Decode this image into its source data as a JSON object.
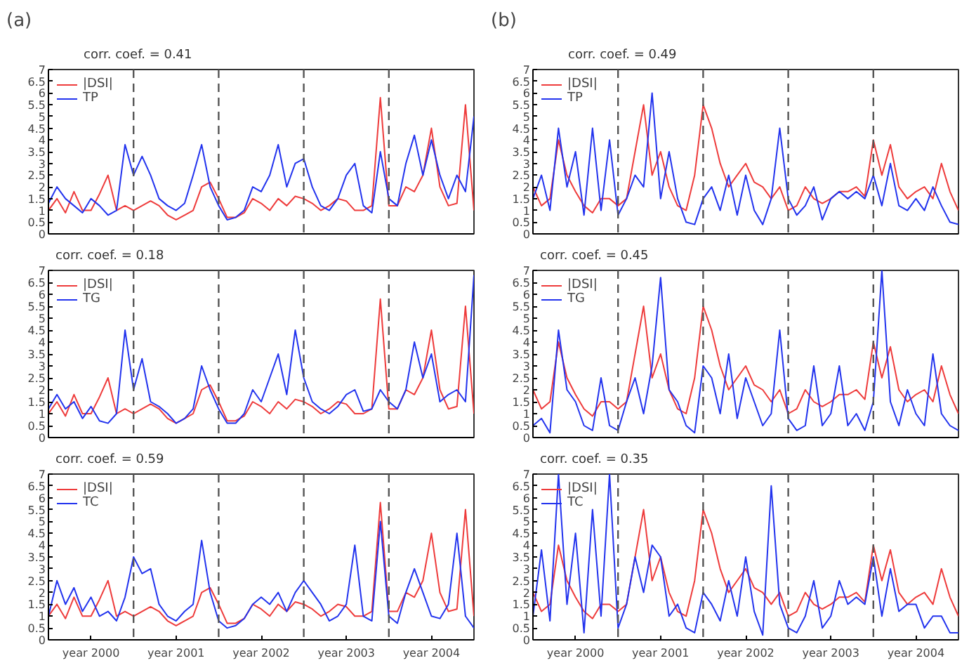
{
  "chart_data": [
    {
      "type": "line",
      "title": "(a)",
      "subtitle": "corr. coef. = 0.41",
      "categories": [
        null,
        null,
        null,
        null,
        null,
        null,
        null,
        null,
        null,
        null,
        null,
        null,
        null,
        null,
        null,
        null,
        null,
        null,
        null,
        null,
        null,
        null,
        null,
        null,
        null,
        null,
        null,
        null,
        null,
        null,
        null,
        null,
        null,
        null,
        null,
        null,
        null,
        null,
        null,
        null,
        null,
        null,
        null,
        null,
        null,
        null,
        null,
        null,
        null,
        null,
        null
      ],
      "series": [
        {
          "name": "|DSI|",
          "color": "#ee3b3b",
          "values": [
            1.0,
            1.5,
            0.9,
            1.8,
            1.0,
            1.0,
            1.7,
            2.5,
            1.0,
            1.2,
            1.0,
            1.2,
            1.4,
            1.2,
            0.8,
            0.6,
            0.8,
            1.0,
            2.0,
            2.2,
            1.5,
            0.7,
            0.7,
            0.9,
            1.5,
            1.3,
            1.0,
            1.5,
            1.2,
            1.6,
            1.5,
            1.3,
            1.0,
            1.2,
            1.5,
            1.4,
            1.0,
            1.0,
            1.2,
            5.8,
            1.2,
            1.2,
            2.0,
            1.8,
            2.5,
            4.5,
            2.0,
            1.2,
            1.3,
            5.5,
            1.0
          ]
        },
        {
          "name": "TP",
          "color": "#2233ee",
          "values": [
            1.3,
            2.0,
            1.5,
            1.2,
            0.9,
            1.5,
            1.2,
            0.8,
            1.0,
            3.8,
            2.5,
            3.3,
            2.5,
            1.5,
            1.2,
            1.0,
            1.3,
            2.5,
            3.8,
            2.0,
            1.2,
            0.6,
            0.7,
            1.0,
            2.0,
            1.8,
            2.5,
            3.8,
            2.0,
            3.0,
            3.2,
            2.0,
            1.2,
            1.0,
            1.5,
            2.5,
            3.0,
            1.2,
            0.9,
            3.5,
            1.5,
            1.2,
            3.0,
            4.2,
            2.5,
            4.0,
            2.5,
            1.5,
            2.5,
            1.8,
            5.0
          ]
        }
      ],
      "ylim": [
        0,
        7
      ],
      "yticks": [
        0,
        0.5,
        1,
        1.5,
        2,
        2.5,
        3,
        3.5,
        4,
        4.5,
        5,
        5.5,
        6,
        6.5,
        7
      ],
      "legend": "top left",
      "grid": "x"
    },
    {
      "type": "line",
      "title": "(b)",
      "subtitle": "corr. coef. = 0.49",
      "categories": [
        null,
        null,
        null,
        null,
        null,
        null,
        null,
        null,
        null,
        null,
        null,
        null,
        null,
        null,
        null,
        null,
        null,
        null,
        null,
        null,
        null,
        null,
        null,
        null,
        null,
        null,
        null,
        null,
        null,
        null,
        null,
        null,
        null,
        null,
        null,
        null,
        null,
        null,
        null,
        null,
        null,
        null,
        null,
        null,
        null,
        null,
        null,
        null,
        null,
        null,
        null
      ],
      "series": [
        {
          "name": "|DSI|",
          "color": "#ee3b3b",
          "values": [
            2.0,
            1.2,
            1.5,
            4.0,
            2.5,
            1.8,
            1.2,
            0.9,
            1.5,
            1.5,
            1.2,
            1.5,
            3.5,
            5.5,
            2.5,
            3.5,
            2.0,
            1.2,
            1.0,
            2.5,
            5.5,
            4.5,
            3.0,
            2.0,
            2.5,
            3.0,
            2.2,
            2.0,
            1.5,
            2.0,
            1.0,
            1.2,
            2.0,
            1.5,
            1.3,
            1.5,
            1.8,
            1.8,
            2.0,
            1.6,
            4.0,
            2.5,
            3.8,
            2.0,
            1.5,
            1.8,
            2.0,
            1.5,
            3.0,
            1.8,
            1.0
          ]
        },
        {
          "name": "TP",
          "color": "#2233ee",
          "values": [
            1.5,
            2.5,
            1.0,
            4.5,
            2.0,
            3.5,
            0.8,
            4.5,
            1.0,
            4.0,
            0.8,
            1.5,
            2.5,
            2.0,
            6.0,
            1.5,
            3.5,
            1.5,
            0.5,
            0.4,
            1.5,
            2.0,
            1.0,
            2.5,
            0.8,
            2.5,
            1.0,
            0.4,
            1.5,
            4.5,
            1.5,
            0.8,
            1.2,
            2.0,
            0.6,
            1.5,
            1.8,
            1.5,
            1.8,
            1.5,
            2.5,
            1.2,
            3.0,
            1.2,
            1.0,
            1.5,
            1.0,
            2.0,
            1.2,
            0.5,
            0.4
          ]
        }
      ],
      "ylim": [
        0,
        7
      ],
      "yticks": [
        0,
        0.5,
        1,
        1.5,
        2,
        2.5,
        3,
        3.5,
        4,
        4.5,
        5,
        5.5,
        6,
        6.5,
        7
      ],
      "legend": "top left",
      "grid": "x"
    },
    {
      "type": "line",
      "title": "corr. coef. = 0.18",
      "categories": [
        null,
        null,
        null,
        null,
        null,
        null,
        null,
        null,
        null,
        null,
        null,
        null,
        null,
        null,
        null,
        null,
        null,
        null,
        null,
        null,
        null,
        null,
        null,
        null,
        null,
        null,
        null,
        null,
        null,
        null,
        null,
        null,
        null,
        null,
        null,
        null,
        null,
        null,
        null,
        null,
        null,
        null,
        null,
        null,
        null,
        null,
        null,
        null,
        null,
        null,
        null
      ],
      "series": [
        {
          "name": "|DSI|",
          "color": "#ee3b3b",
          "values": [
            1.0,
            1.5,
            0.9,
            1.8,
            1.0,
            1.0,
            1.7,
            2.5,
            1.0,
            1.2,
            1.0,
            1.2,
            1.4,
            1.2,
            0.8,
            0.6,
            0.8,
            1.0,
            2.0,
            2.2,
            1.5,
            0.7,
            0.7,
            0.9,
            1.5,
            1.3,
            1.0,
            1.5,
            1.2,
            1.6,
            1.5,
            1.3,
            1.0,
            1.2,
            1.5,
            1.4,
            1.0,
            1.0,
            1.2,
            5.8,
            1.2,
            1.2,
            2.0,
            1.8,
            2.5,
            4.5,
            2.0,
            1.2,
            1.3,
            5.5,
            1.0
          ]
        },
        {
          "name": "TG",
          "color": "#2233ee",
          "values": [
            1.2,
            1.8,
            1.2,
            1.5,
            0.8,
            1.3,
            0.7,
            0.6,
            1.0,
            4.5,
            2.0,
            3.3,
            1.5,
            1.3,
            1.0,
            0.6,
            0.8,
            1.2,
            3.0,
            2.0,
            1.2,
            0.6,
            0.6,
            1.0,
            2.0,
            1.5,
            2.5,
            3.5,
            1.8,
            4.5,
            2.5,
            1.5,
            1.2,
            1.0,
            1.3,
            1.8,
            2.0,
            1.1,
            1.2,
            2.0,
            1.5,
            1.2,
            2.0,
            4.0,
            2.5,
            3.5,
            1.5,
            1.8,
            2.0,
            1.5,
            6.8
          ]
        }
      ],
      "ylim": [
        0,
        7
      ],
      "yticks": [
        0,
        0.5,
        1,
        1.5,
        2,
        2.5,
        3,
        3.5,
        4,
        4.5,
        5,
        5.5,
        6,
        6.5,
        7
      ],
      "legend": "top left",
      "grid": "x"
    },
    {
      "type": "line",
      "title": "corr. coef. = 0.45",
      "categories": [
        null,
        null,
        null,
        null,
        null,
        null,
        null,
        null,
        null,
        null,
        null,
        null,
        null,
        null,
        null,
        null,
        null,
        null,
        null,
        null,
        null,
        null,
        null,
        null,
        null,
        null,
        null,
        null,
        null,
        null,
        null,
        null,
        null,
        null,
        null,
        null,
        null,
        null,
        null,
        null,
        null,
        null,
        null,
        null,
        null,
        null,
        null,
        null,
        null,
        null,
        null
      ],
      "series": [
        {
          "name": "|DSI|",
          "color": "#ee3b3b",
          "values": [
            2.0,
            1.2,
            1.5,
            4.0,
            2.5,
            1.8,
            1.2,
            0.9,
            1.5,
            1.5,
            1.2,
            1.5,
            3.5,
            5.5,
            2.5,
            3.5,
            2.0,
            1.2,
            1.0,
            2.5,
            5.5,
            4.5,
            3.0,
            2.0,
            2.5,
            3.0,
            2.2,
            2.0,
            1.5,
            2.0,
            1.0,
            1.2,
            2.0,
            1.5,
            1.3,
            1.5,
            1.8,
            1.8,
            2.0,
            1.6,
            4.0,
            2.5,
            3.8,
            2.0,
            1.5,
            1.8,
            2.0,
            1.5,
            3.0,
            1.8,
            1.0
          ]
        },
        {
          "name": "TG",
          "color": "#2233ee",
          "values": [
            0.5,
            0.8,
            0.2,
            4.5,
            2.0,
            1.5,
            0.5,
            0.3,
            2.5,
            0.5,
            0.3,
            1.5,
            2.5,
            1.0,
            3.0,
            6.7,
            2.0,
            1.5,
            0.5,
            0.2,
            3.0,
            2.5,
            1.0,
            3.5,
            0.8,
            2.5,
            1.5,
            0.5,
            1.0,
            4.5,
            0.8,
            0.3,
            0.5,
            3.0,
            0.5,
            1.0,
            3.0,
            0.5,
            1.0,
            0.3,
            1.5,
            7.0,
            1.5,
            0.5,
            2.0,
            1.0,
            0.5,
            3.5,
            1.0,
            0.5,
            0.3
          ]
        }
      ],
      "ylim": [
        0,
        7
      ],
      "yticks": [
        0,
        0.5,
        1,
        1.5,
        2,
        2.5,
        3,
        3.5,
        4,
        4.5,
        5,
        5.5,
        6,
        6.5,
        7
      ],
      "legend": "top left",
      "grid": "x"
    },
    {
      "type": "line",
      "title": "corr. coef. = 0.59",
      "categories": [
        null,
        null,
        null,
        null,
        null,
        "year 2000",
        null,
        null,
        null,
        null,
        null,
        null,
        null,
        null,
        null,
        "year 2001",
        null,
        null,
        null,
        null,
        null,
        null,
        null,
        null,
        null,
        "year 2002",
        null,
        null,
        null,
        null,
        null,
        null,
        null,
        null,
        null,
        "year 2003",
        null,
        null,
        null,
        null,
        null,
        null,
        null,
        null,
        null,
        "year 2004",
        null,
        null,
        null,
        null,
        null
      ],
      "series": [
        {
          "name": "|DSI|",
          "color": "#ee3b3b",
          "values": [
            1.0,
            1.5,
            0.9,
            1.8,
            1.0,
            1.0,
            1.7,
            2.5,
            1.0,
            1.2,
            1.0,
            1.2,
            1.4,
            1.2,
            0.8,
            0.6,
            0.8,
            1.0,
            2.0,
            2.2,
            1.5,
            0.7,
            0.7,
            0.9,
            1.5,
            1.3,
            1.0,
            1.5,
            1.2,
            1.6,
            1.5,
            1.3,
            1.0,
            1.2,
            1.5,
            1.4,
            1.0,
            1.0,
            1.2,
            5.8,
            1.2,
            1.2,
            2.0,
            1.8,
            2.5,
            4.5,
            2.0,
            1.2,
            1.3,
            5.5,
            1.0
          ]
        },
        {
          "name": "TC",
          "color": "#2233ee",
          "values": [
            1.0,
            2.5,
            1.5,
            2.2,
            1.2,
            1.8,
            1.0,
            1.2,
            0.8,
            1.8,
            3.5,
            2.8,
            3.0,
            1.5,
            1.0,
            0.8,
            1.2,
            1.5,
            4.2,
            2.0,
            0.8,
            0.5,
            0.6,
            0.9,
            1.5,
            1.8,
            1.5,
            2.0,
            1.2,
            2.0,
            2.5,
            2.0,
            1.5,
            0.8,
            1.0,
            1.5,
            4.0,
            1.0,
            0.8,
            5.0,
            1.0,
            0.7,
            2.0,
            3.0,
            2.0,
            1.0,
            0.9,
            1.5,
            4.5,
            1.0,
            0.5
          ]
        }
      ],
      "ylim": [
        0,
        7
      ],
      "yticks": [
        0,
        0.5,
        1,
        1.5,
        2,
        2.5,
        3,
        3.5,
        4,
        4.5,
        5,
        5.5,
        6,
        6.5,
        7
      ],
      "legend": "top left",
      "grid": "x"
    },
    {
      "type": "line",
      "title": "corr. coef. = 0.35",
      "categories": [
        null,
        null,
        null,
        null,
        null,
        "year 2000",
        null,
        null,
        null,
        null,
        null,
        null,
        null,
        null,
        null,
        "year 2001",
        null,
        null,
        null,
        null,
        null,
        null,
        null,
        null,
        null,
        "year 2002",
        null,
        null,
        null,
        null,
        null,
        null,
        null,
        null,
        null,
        "year 2003",
        null,
        null,
        null,
        null,
        null,
        null,
        null,
        null,
        null,
        "year 2004",
        null,
        null,
        null,
        null,
        null
      ],
      "series": [
        {
          "name": "|DSI|",
          "color": "#ee3b3b",
          "values": [
            2.0,
            1.2,
            1.5,
            4.0,
            2.5,
            1.8,
            1.2,
            0.9,
            1.5,
            1.5,
            1.2,
            1.5,
            3.5,
            5.5,
            2.5,
            3.5,
            2.0,
            1.2,
            1.0,
            2.5,
            5.5,
            4.5,
            3.0,
            2.0,
            2.5,
            3.0,
            2.2,
            2.0,
            1.5,
            2.0,
            1.0,
            1.2,
            2.0,
            1.5,
            1.3,
            1.5,
            1.8,
            1.8,
            2.0,
            1.6,
            4.0,
            2.5,
            3.8,
            2.0,
            1.5,
            1.8,
            2.0,
            1.5,
            3.0,
            1.8,
            1.0
          ]
        },
        {
          "name": "TC",
          "color": "#2233ee",
          "values": [
            1.0,
            3.8,
            0.8,
            7.0,
            1.5,
            4.5,
            0.3,
            5.5,
            1.0,
            7.0,
            0.5,
            1.5,
            3.5,
            2.0,
            4.0,
            3.5,
            1.0,
            1.5,
            0.5,
            0.3,
            2.0,
            1.5,
            0.8,
            2.5,
            1.0,
            3.5,
            1.2,
            0.2,
            6.5,
            1.5,
            0.5,
            0.3,
            1.0,
            2.5,
            0.5,
            1.0,
            2.5,
            1.5,
            1.8,
            1.5,
            3.5,
            1.0,
            3.0,
            1.2,
            1.5,
            1.5,
            0.5,
            1.0,
            1.0,
            0.3,
            0.3
          ]
        }
      ],
      "ylim": [
        0,
        7
      ],
      "yticks": [
        0,
        0.5,
        1,
        1.5,
        2,
        2.5,
        3,
        3.5,
        4,
        4.5,
        5,
        5.5,
        6,
        6.5,
        7
      ],
      "legend": "top left",
      "grid": "x"
    }
  ]
}
